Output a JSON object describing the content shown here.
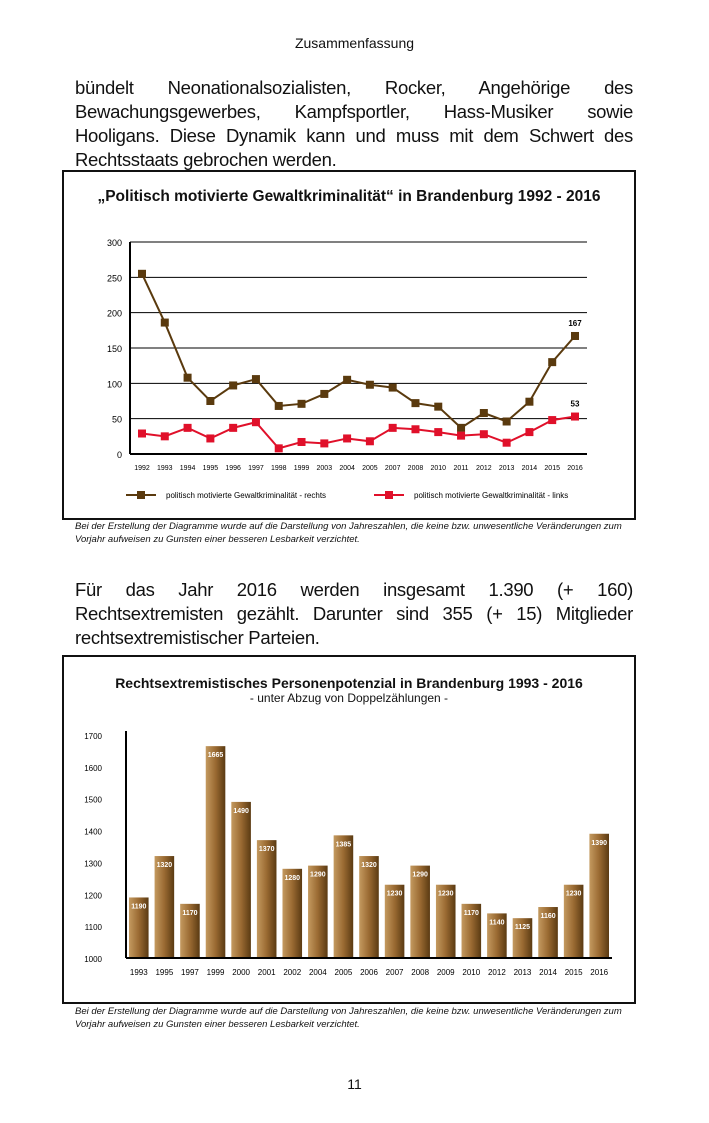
{
  "header": "Zusammenfassung",
  "para1": "bündelt Neonationalsozialisten, Rocker, Angehörige des Bewachungsgewerbes, Kampfsportler, Hass-Musiker sowie Hooligans. Diese Dynamik kann und muss mit dem Schwert des Rechtsstaats gebrochen werden.",
  "caption1": "Bei der Erstellung der Diagramme wurde auf die Darstellung von Jahreszahlen, die keine bzw. unwesentliche Veränderungen zum Vorjahr aufweisen zu Gunsten einer besseren Lesbarkeit verzichtet.",
  "para2": "Für das Jahr 2016 werden insgesamt 1.390 (+ 160) Rechtsextremisten gezählt. Darunter sind 355 (+ 15) Mitglieder rechtsextremistischer Parteien.",
  "caption2": "Bei der Erstellung der Diagramme wurde auf die Darstellung von Jahreszahlen, die keine bzw. unwesentliche Veränderungen zum Vorjahr aufweisen zu Gunsten einer besseren Lesbarkeit verzichtet.",
  "page_number": "11",
  "chart_data": [
    {
      "type": "line",
      "title": "„Politisch motivierte Gewaltkriminalität“ in Brandenburg 1992 - 2016",
      "categories": [
        "1992",
        "1993",
        "1994",
        "1995",
        "1996",
        "1997",
        "1998",
        "1999",
        "2003",
        "2004",
        "2005",
        "2007",
        "2008",
        "2010",
        "2011",
        "2012",
        "2013",
        "2014",
        "2015",
        "2016"
      ],
      "ylim": [
        0,
        300
      ],
      "yticks": [
        0,
        50,
        100,
        150,
        200,
        250,
        300
      ],
      "grid": true,
      "legend": "bottom",
      "series": [
        {
          "name": "politisch motivierte Gewaltkriminalität - rechts",
          "color": "#5a3a0e",
          "values": [
            255,
            186,
            108,
            75,
            97,
            106,
            68,
            71,
            85,
            105,
            98,
            94,
            72,
            67,
            37,
            58,
            46,
            74,
            130,
            167
          ],
          "end_label": "167"
        },
        {
          "name": "politisch motivierte Gewaltkriminalität - links",
          "color": "#e0102a",
          "values": [
            29,
            25,
            37,
            22,
            37,
            45,
            8,
            17,
            15,
            22,
            18,
            37,
            35,
            31,
            26,
            28,
            16,
            31,
            48,
            53
          ],
          "end_label": "53"
        }
      ]
    },
    {
      "type": "bar",
      "title": "Rechtsextremistisches Personenpotenzial in Brandenburg 1993 - 2016",
      "subtitle": "- unter Abzug von Doppelzählungen -",
      "categories": [
        "1993",
        "1995",
        "1997",
        "1999",
        "2000",
        "2001",
        "2002",
        "2004",
        "2005",
        "2006",
        "2007",
        "2008",
        "2009",
        "2010",
        "2012",
        "2013",
        "2014",
        "2015",
        "2016"
      ],
      "values": [
        1190,
        1320,
        1170,
        1665,
        1490,
        1370,
        1280,
        1290,
        1385,
        1320,
        1230,
        1290,
        1230,
        1170,
        1140,
        1125,
        1160,
        1230,
        1390
      ],
      "ylim": [
        1000,
        1700
      ],
      "yticks": [
        1000,
        1100,
        1200,
        1300,
        1400,
        1500,
        1600,
        1700
      ],
      "color": "#8a5f2a"
    }
  ]
}
